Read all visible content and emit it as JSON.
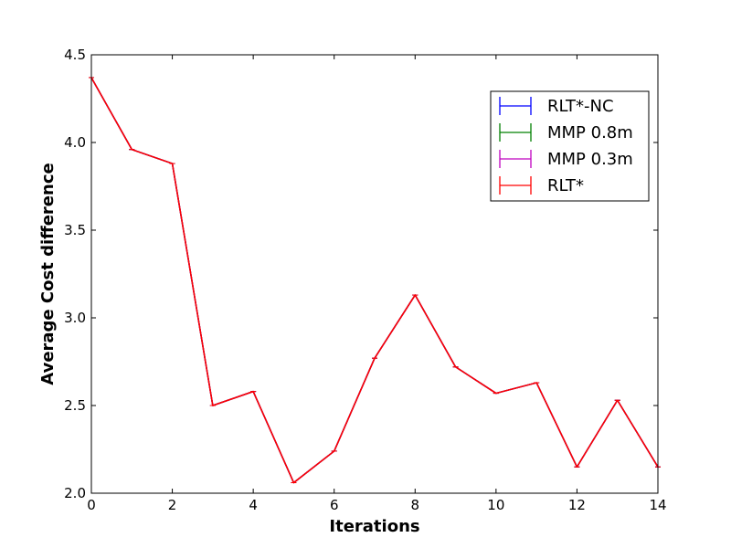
{
  "chart_data": {
    "type": "line",
    "title": "",
    "xlabel": "Iterations",
    "ylabel": "Average Cost difference",
    "xlim": [
      0,
      14
    ],
    "ylim": [
      2.0,
      4.5
    ],
    "xticks": [
      0,
      2,
      4,
      6,
      8,
      10,
      12,
      14
    ],
    "yticks": [
      2.0,
      2.5,
      3.0,
      3.5,
      4.0,
      4.5
    ],
    "xtick_labels": [
      "0",
      "2",
      "4",
      "6",
      "8",
      "10",
      "12",
      "14"
    ],
    "ytick_labels": [
      "2.0",
      "2.5",
      "3.0",
      "3.5",
      "4.0",
      "4.5"
    ],
    "grid": false,
    "legend_position": "top-right",
    "x": [
      0,
      1,
      2,
      3,
      4,
      5,
      6,
      7,
      8,
      9,
      10,
      11,
      12,
      13,
      14
    ],
    "series": [
      {
        "name": "RLT*-NC",
        "color": "#0000ff",
        "error_bars": true,
        "values": [
          4.37,
          3.96,
          3.88,
          2.5,
          2.58,
          2.06,
          2.24,
          2.77,
          3.13,
          2.72,
          2.57,
          2.63,
          2.15,
          2.53,
          2.15
        ]
      },
      {
        "name": "MMP 0.8m",
        "color": "#008000",
        "error_bars": true,
        "values": [
          4.37,
          3.96,
          3.88,
          2.5,
          2.58,
          2.06,
          2.24,
          2.77,
          3.13,
          2.72,
          2.57,
          2.63,
          2.15,
          2.53,
          2.15
        ]
      },
      {
        "name": "MMP 0.3m",
        "color": "#bf00bf",
        "error_bars": true,
        "values": [
          4.37,
          3.96,
          3.88,
          2.5,
          2.58,
          2.06,
          2.24,
          2.77,
          3.13,
          2.72,
          2.57,
          2.63,
          2.15,
          2.53,
          2.15
        ]
      },
      {
        "name": "RLT*",
        "color": "#ff0000",
        "error_bars": true,
        "values": [
          4.37,
          3.96,
          3.88,
          2.5,
          2.58,
          2.06,
          2.24,
          2.77,
          3.13,
          2.72,
          2.57,
          2.63,
          2.15,
          2.53,
          2.15
        ]
      }
    ]
  }
}
